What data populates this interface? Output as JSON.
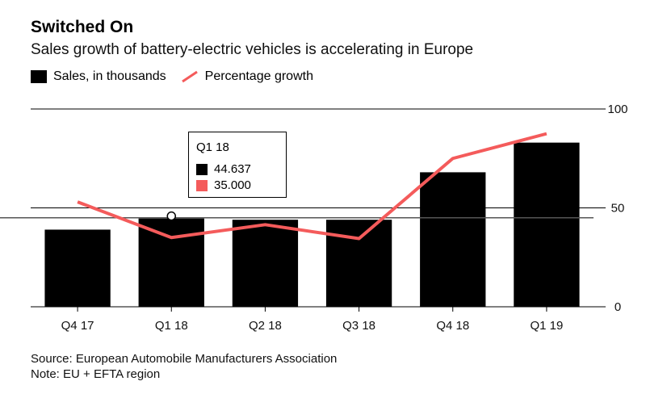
{
  "title": "Switched On",
  "subtitle": "Sales growth of battery-electric vehicles is accelerating in Europe",
  "legend": {
    "bar_label": "Sales, in thousands",
    "line_label": "Percentage growth"
  },
  "tooltip": {
    "title": "Q1 18",
    "bar_value": "44.637",
    "line_value": "35.000"
  },
  "footer": {
    "source": "Source: European Automobile Manufacturers Association",
    "note": "Note: EU + EFTA region"
  },
  "colors": {
    "bar": "#000000",
    "line": "#f45b5b",
    "grid": "#000000"
  },
  "chart_data": {
    "type": "bar",
    "categories": [
      "Q4 17",
      "Q1 18",
      "Q2 18",
      "Q3 18",
      "Q4 18",
      "Q1 19"
    ],
    "series": [
      {
        "name": "Sales, in thousands",
        "type": "bar",
        "values": [
          39,
          44.637,
          44,
          44,
          68,
          83
        ]
      },
      {
        "name": "Percentage growth",
        "type": "line",
        "values": [
          53,
          35,
          41.5,
          34.5,
          75,
          87.5
        ]
      }
    ],
    "yticks": [
      0,
      50,
      100
    ],
    "ylim": [
      0,
      100
    ],
    "reference_line": 45,
    "highlight_index": 1,
    "grid": true,
    "legend_position": "top-left"
  }
}
